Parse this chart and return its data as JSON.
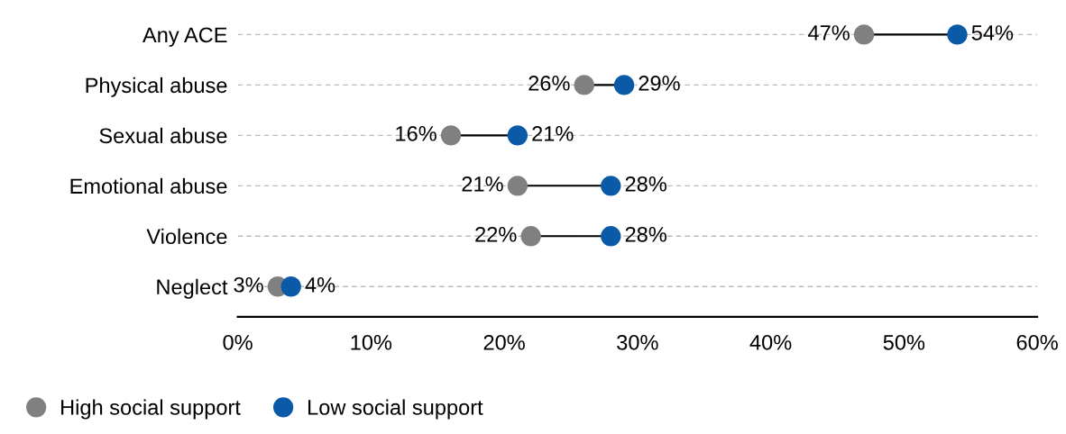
{
  "chart_data": {
    "type": "scatter",
    "orientation": "horizontal",
    "categories": [
      "Any ACE",
      "Physical abuse",
      "Sexual abuse",
      "Emotional abuse",
      "Violence",
      "Neglect"
    ],
    "series": [
      {
        "name": "High social support",
        "color": "#808080",
        "values": [
          47,
          26,
          16,
          21,
          22,
          3
        ],
        "value_labels": [
          "47%",
          "26%",
          "16%",
          "21%",
          "22%",
          "3%"
        ]
      },
      {
        "name": "Low social support",
        "color": "#0a5aa8",
        "values": [
          54,
          29,
          21,
          28,
          28,
          4
        ],
        "value_labels": [
          "54%",
          "29%",
          "21%",
          "28%",
          "28%",
          "4%"
        ]
      }
    ],
    "xlim": [
      0,
      60
    ],
    "xticks": [
      {
        "value": 0,
        "label": "0%"
      },
      {
        "value": 10,
        "label": "10%"
      },
      {
        "value": 20,
        "label": "20%"
      },
      {
        "value": 30,
        "label": "30%"
      },
      {
        "value": 40,
        "label": "40%"
      },
      {
        "value": 50,
        "label": "50%"
      },
      {
        "value": 60,
        "label": "60%"
      }
    ],
    "grid": "y",
    "legend": "bottom left",
    "marker": "circle"
  }
}
